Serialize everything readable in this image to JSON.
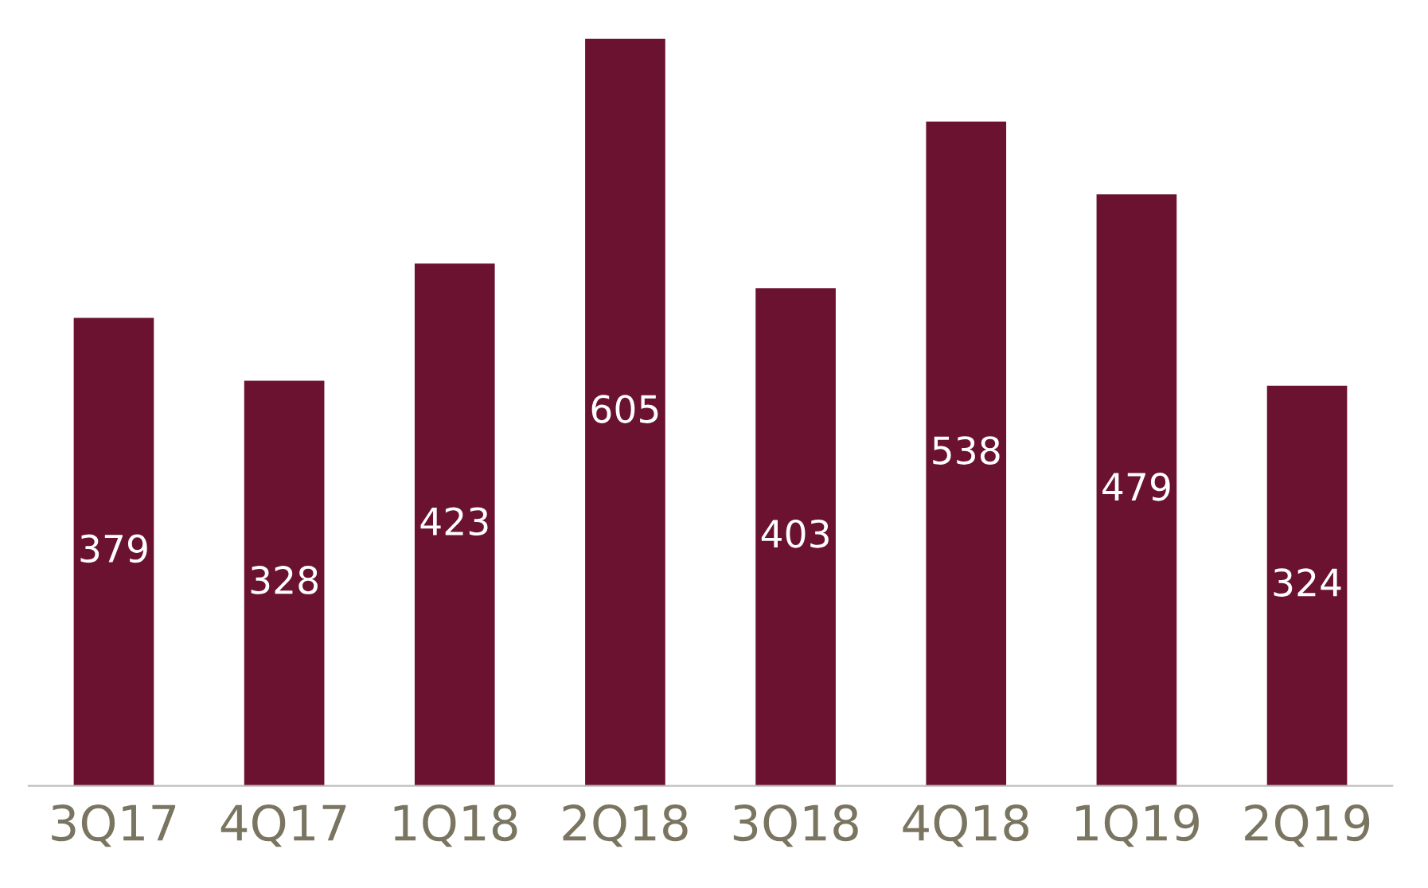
{
  "chart_data": {
    "type": "bar",
    "categories": [
      "3Q17",
      "4Q17",
      "1Q18",
      "2Q18",
      "3Q18",
      "4Q18",
      "1Q19",
      "2Q19"
    ],
    "values": [
      379,
      328,
      423,
      605,
      403,
      538,
      479,
      324
    ],
    "color": "#6a1230",
    "data_labels": true,
    "grid": false,
    "legend": false
  }
}
